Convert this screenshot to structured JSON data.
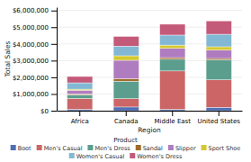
{
  "chart_data": {
    "type": "bar",
    "stacked": true,
    "xlabel": "Region",
    "ylabel": "Total Sales",
    "legend_title": "Product",
    "legend": "bottom",
    "grid": true,
    "categories": [
      "Africa",
      "Canada",
      "Middle East",
      "United States"
    ],
    "series": [
      {
        "name": "Boot",
        "color": "#4f6eb4",
        "values": [
          80000,
          220000,
          80000,
          200000
        ]
      },
      {
        "name": "Men's Casual",
        "color": "#cc6666",
        "values": [
          650000,
          500000,
          2300000,
          1650000
        ]
      },
      {
        "name": "Men's Dress",
        "color": "#5b9e8e",
        "values": [
          220000,
          1050000,
          700000,
          1200000
        ]
      },
      {
        "name": "Sandal",
        "color": "#9e6b2a",
        "values": [
          60000,
          150000,
          100000,
          80000
        ]
      },
      {
        "name": "Slipper",
        "color": "#b07cc0",
        "values": [
          220000,
          1100000,
          550000,
          500000
        ]
      },
      {
        "name": "Sport Shoe",
        "color": "#d4c832",
        "values": [
          60000,
          270000,
          200000,
          200000
        ]
      },
      {
        "name": "Women's Casual",
        "color": "#82b8d4",
        "values": [
          380000,
          580000,
          600000,
          750000
        ]
      },
      {
        "name": "Women's Dress",
        "color": "#c45a7a",
        "values": [
          380000,
          580000,
          650000,
          800000
        ]
      }
    ],
    "ylim": [
      0,
      6200000
    ],
    "yticks": [
      {
        "value": 0,
        "label": "$0"
      },
      {
        "value": 1000000,
        "label": "$1,000,000"
      },
      {
        "value": 2000000,
        "label": "$2,000,000"
      },
      {
        "value": 3000000,
        "label": "$3,000,000"
      },
      {
        "value": 4000000,
        "label": "$4,000,000"
      },
      {
        "value": 5000000,
        "label": "$5,000,000"
      },
      {
        "value": 6000000,
        "label": "$6,000,000"
      }
    ]
  }
}
